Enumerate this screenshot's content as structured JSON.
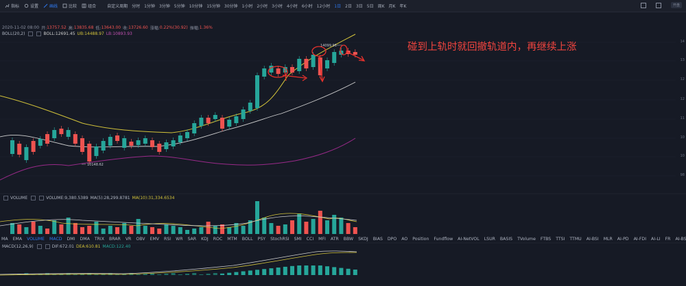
{
  "toolbar": {
    "items": [
      "指标",
      "设置",
      "画线",
      "比较",
      "组合"
    ],
    "custom_period": "自定义周期",
    "timeframes": [
      "分时",
      "1分钟",
      "3分钟",
      "5分钟",
      "10分钟",
      "15分钟",
      "30分钟",
      "1小时",
      "2小时",
      "3小时",
      "4小时",
      "6小时",
      "12小时",
      "1日",
      "2日",
      "3日",
      "5日",
      "周K",
      "月K",
      "年K"
    ],
    "active_timeframe": "1日",
    "right_pill": "开盘"
  },
  "ohlc": {
    "date": "2020-11-02 08:00",
    "open_label": "开:",
    "open": "13757.52",
    "high_label": "高:",
    "high": "13835.68",
    "low_label": "低:",
    "low": "13643.00",
    "close_label": "收:",
    "close": "13726.60",
    "change_label": "涨幅:",
    "change": "0.22%(30.92)",
    "amp_label": "振幅:",
    "amp": "1.36%"
  },
  "boll": {
    "name": "BOLL(20,2)",
    "mid": "BOLL:12691.45",
    "ub": "UB:14488.97",
    "lb": "LB:10893.93"
  },
  "price_labels": {
    "high": "14099.96",
    "low": "10148.62"
  },
  "annotation": "碰到上轨时就回撤轨道内，再继续上涨",
  "volume": {
    "name": "VOLUME",
    "value": "VOLUME:9,380.5389",
    "ma5": "MA(5):28,299.8781",
    "ma10": "MA(10):31,334.6534"
  },
  "indicators": [
    "MA",
    "EMA",
    "VOLUME",
    "MACD",
    "DMI",
    "DMA",
    "TRIX",
    "BRAR",
    "VR",
    "OBV",
    "EMV",
    "RSI",
    "WR",
    "SAR",
    "KDJ",
    "ROC",
    "MTM",
    "BOLL",
    "PSY",
    "StochRSI",
    "SMI",
    "CCI",
    "MFI",
    "ATR",
    "BBW",
    "SKDJ",
    "BIAS",
    "DPO",
    "AO",
    "Position",
    "Fundflow",
    "AI-NetVOL",
    "LSUR",
    "BASIS",
    "TVolume",
    "FTBS",
    "TTSI",
    "TTMU",
    "AI-BSI",
    "MLR",
    "AI-PD",
    "AI-FDI",
    "AI-LI",
    "FR",
    "AI-BST"
  ],
  "active_indicators": [
    "VOLUME",
    "MACD"
  ],
  "macd": {
    "name": "MACD(12,26,9)",
    "dif": "DIF:672.01",
    "dea": "DEA:610.81",
    "macd": "MACD:122.40"
  },
  "y_axis_labels": [
    "14",
    "13",
    "12",
    "12",
    "11",
    "10",
    "10",
    "98"
  ],
  "colors": {
    "up": "#26a69a",
    "down": "#ef5350",
    "ub": "#d4c43a",
    "mid": "#d0d0d0",
    "lb": "#9a2a8a",
    "accent": "#2f7cf6",
    "annotation": "#f0443e"
  },
  "chart_data": {
    "type": "candlestick",
    "note_series": "daily candles with Bollinger Bands",
    "high_marker": 14099.96,
    "low_marker": 10148.62
  }
}
